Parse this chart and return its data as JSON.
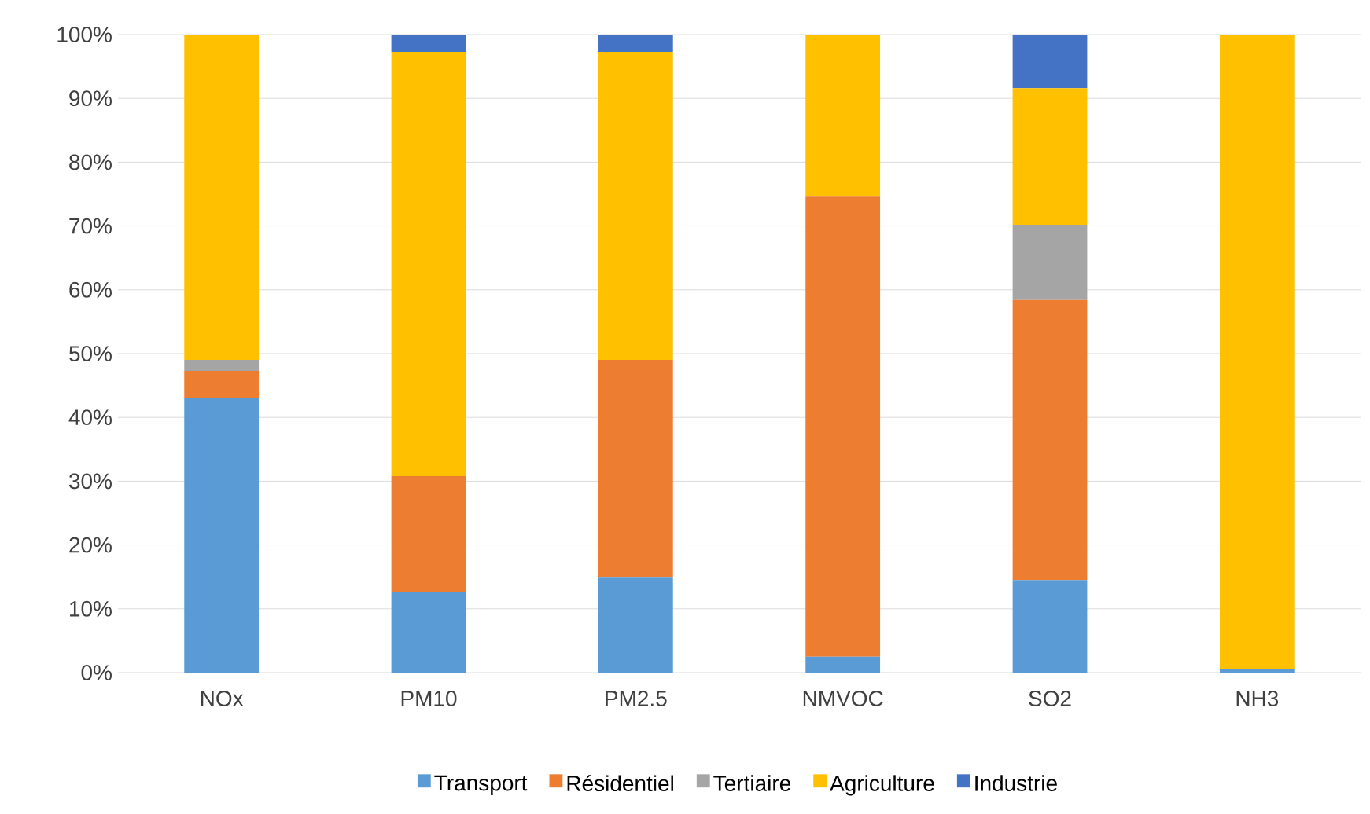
{
  "chart_data": {
    "type": "bar",
    "stacked": true,
    "categories": [
      "NOx",
      "PM10",
      "PM2.5",
      "NMVOC",
      "SO2",
      "NH3"
    ],
    "series": [
      {
        "name": "Transport",
        "color": "#5b9bd5",
        "values": [
          43.1,
          12.6,
          15.0,
          2.5,
          14.5,
          0.5
        ]
      },
      {
        "name": "Résidentiel",
        "color": "#ed7d31",
        "values": [
          4.2,
          18.2,
          34.0,
          72.1,
          43.9,
          0
        ]
      },
      {
        "name": "Tertiaire",
        "color": "#a5a5a5",
        "values": [
          1.7,
          0,
          0,
          0,
          11.8,
          0
        ]
      },
      {
        "name": "Agriculture",
        "color": "#ffc000",
        "values": [
          51.0,
          66.5,
          48.3,
          25.4,
          21.4,
          99.5
        ]
      },
      {
        "name": "Industrie",
        "color": "#4472c4",
        "values": [
          0,
          2.7,
          2.7,
          0,
          8.4,
          0
        ]
      }
    ],
    "ylim": [
      0,
      100
    ],
    "yticks": [
      {
        "value": 0,
        "label": "0%"
      },
      {
        "value": 10,
        "label": "10%"
      },
      {
        "value": 20,
        "label": "20%"
      },
      {
        "value": 30,
        "label": "30%"
      },
      {
        "value": 40,
        "label": "40%"
      },
      {
        "value": 50,
        "label": "50%"
      },
      {
        "value": 60,
        "label": "60%"
      },
      {
        "value": 70,
        "label": "70%"
      },
      {
        "value": 80,
        "label": "80%"
      },
      {
        "value": 90,
        "label": "90%"
      },
      {
        "value": 100,
        "label": "100%"
      }
    ],
    "grid": "y",
    "legend": "bottom"
  }
}
